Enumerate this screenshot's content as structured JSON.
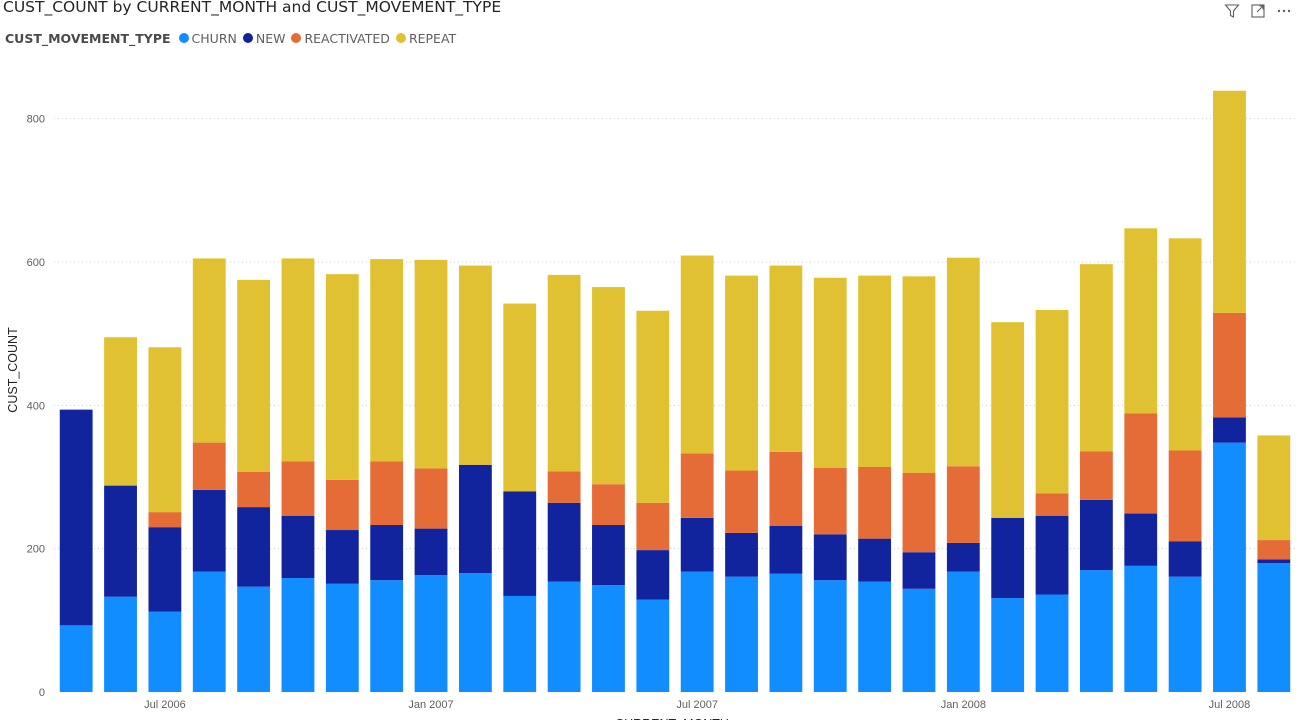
{
  "visual": {
    "title": "CUST_COUNT by CURRENT_MONTH and CUST_MOVEMENT_TYPE",
    "toolbar": [
      {
        "name": "filter-icon",
        "glyph": "filter"
      },
      {
        "name": "focus-mode-icon",
        "glyph": "focus"
      },
      {
        "name": "more-options-icon",
        "glyph": "more"
      }
    ]
  },
  "chart_data": {
    "type": "bar",
    "stacked": true,
    "title": "CUST_COUNT by CURRENT_MONTH and CUST_MOVEMENT_TYPE",
    "xlabel": "CURRENT_MONTH",
    "ylabel": "CUST_COUNT",
    "legend_title": "CUST_MOVEMENT_TYPE",
    "legend_position": "top-left",
    "grid": true,
    "ylim": [
      0,
      900
    ],
    "yticks": [
      0,
      200,
      400,
      600,
      800
    ],
    "x_tick_labels": [
      {
        "label": "Jul 2006",
        "category": "2006-07"
      },
      {
        "label": "Jan 2007",
        "category": "2007-01"
      },
      {
        "label": "Jul 2007",
        "category": "2007-07"
      },
      {
        "label": "Jan 2008",
        "category": "2008-01"
      },
      {
        "label": "Jul 2008",
        "category": "2008-07"
      }
    ],
    "categories": [
      "2006-05",
      "2006-06",
      "2006-07",
      "2006-08",
      "2006-09",
      "2006-10",
      "2006-11",
      "2006-12",
      "2007-01",
      "2007-02",
      "2007-03",
      "2007-04",
      "2007-05",
      "2007-06",
      "2007-07",
      "2007-08",
      "2007-09",
      "2007-10",
      "2007-11",
      "2007-12",
      "2008-01",
      "2008-02",
      "2008-03",
      "2008-04",
      "2008-05",
      "2008-06",
      "2008-07",
      "2008-08"
    ],
    "series": [
      {
        "name": "CHURN",
        "color": "#118DFF",
        "values": [
          93,
          133,
          112,
          168,
          147,
          159,
          151,
          156,
          163,
          166,
          134,
          154,
          149,
          129,
          168,
          161,
          165,
          156,
          154,
          144,
          168,
          131,
          136,
          170,
          176,
          161,
          348,
          180
        ]
      },
      {
        "name": "NEW",
        "color": "#12239E",
        "values": [
          301,
          155,
          118,
          114,
          111,
          87,
          75,
          77,
          65,
          151,
          146,
          110,
          84,
          69,
          75,
          61,
          67,
          64,
          60,
          51,
          40,
          112,
          110,
          98,
          73,
          49,
          35,
          5
        ]
      },
      {
        "name": "REACTIVATED",
        "color": "#E66C37",
        "values": [
          0,
          0,
          21,
          66,
          49,
          76,
          70,
          89,
          84,
          0,
          0,
          44,
          57,
          66,
          90,
          87,
          103,
          93,
          100,
          111,
          107,
          0,
          31,
          68,
          140,
          127,
          146,
          27
        ]
      },
      {
        "name": "REPEAT",
        "color": "#E0C131",
        "values": [
          0,
          207,
          230,
          257,
          268,
          283,
          287,
          282,
          291,
          278,
          262,
          274,
          275,
          268,
          276,
          272,
          260,
          265,
          267,
          274,
          291,
          273,
          256,
          261,
          258,
          296,
          310,
          146
        ]
      }
    ]
  }
}
